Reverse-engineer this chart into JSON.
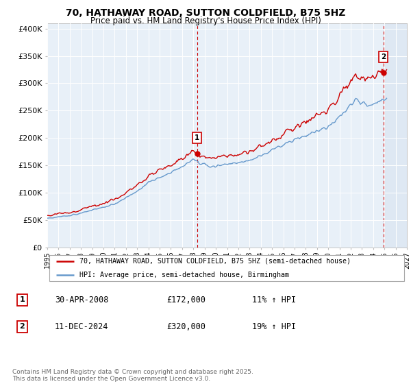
{
  "title": "70, HATHAWAY ROAD, SUTTON COLDFIELD, B75 5HZ",
  "subtitle": "Price paid vs. HM Land Registry's House Price Index (HPI)",
  "ylabel_ticks": [
    "£0",
    "£50K",
    "£100K",
    "£150K",
    "£200K",
    "£250K",
    "£300K",
    "£350K",
    "£400K"
  ],
  "ytick_values": [
    0,
    50000,
    100000,
    150000,
    200000,
    250000,
    300000,
    350000,
    400000
  ],
  "ylim": [
    0,
    410000
  ],
  "xlim_start": 1995.0,
  "xlim_end": 2027.0,
  "red_color": "#cc0000",
  "blue_color": "#6699cc",
  "chart_bg": "#e8f0f8",
  "marker1_x": 2008.33,
  "marker1_y": 172000,
  "marker1_label": "1",
  "marker2_x": 2024.92,
  "marker2_y": 320000,
  "marker2_label": "2",
  "annotation1_date": "30-APR-2008",
  "annotation1_price": "£172,000",
  "annotation1_hpi": "11% ↑ HPI",
  "annotation2_date": "11-DEC-2024",
  "annotation2_price": "£320,000",
  "annotation2_hpi": "19% ↑ HPI",
  "legend_line1": "70, HATHAWAY ROAD, SUTTON COLDFIELD, B75 5HZ (semi-detached house)",
  "legend_line2": "HPI: Average price, semi-detached house, Birmingham",
  "footer": "Contains HM Land Registry data © Crown copyright and database right 2025.\nThis data is licensed under the Open Government Licence v3.0.",
  "background_color": "#ffffff",
  "grid_color": "#ffffff"
}
